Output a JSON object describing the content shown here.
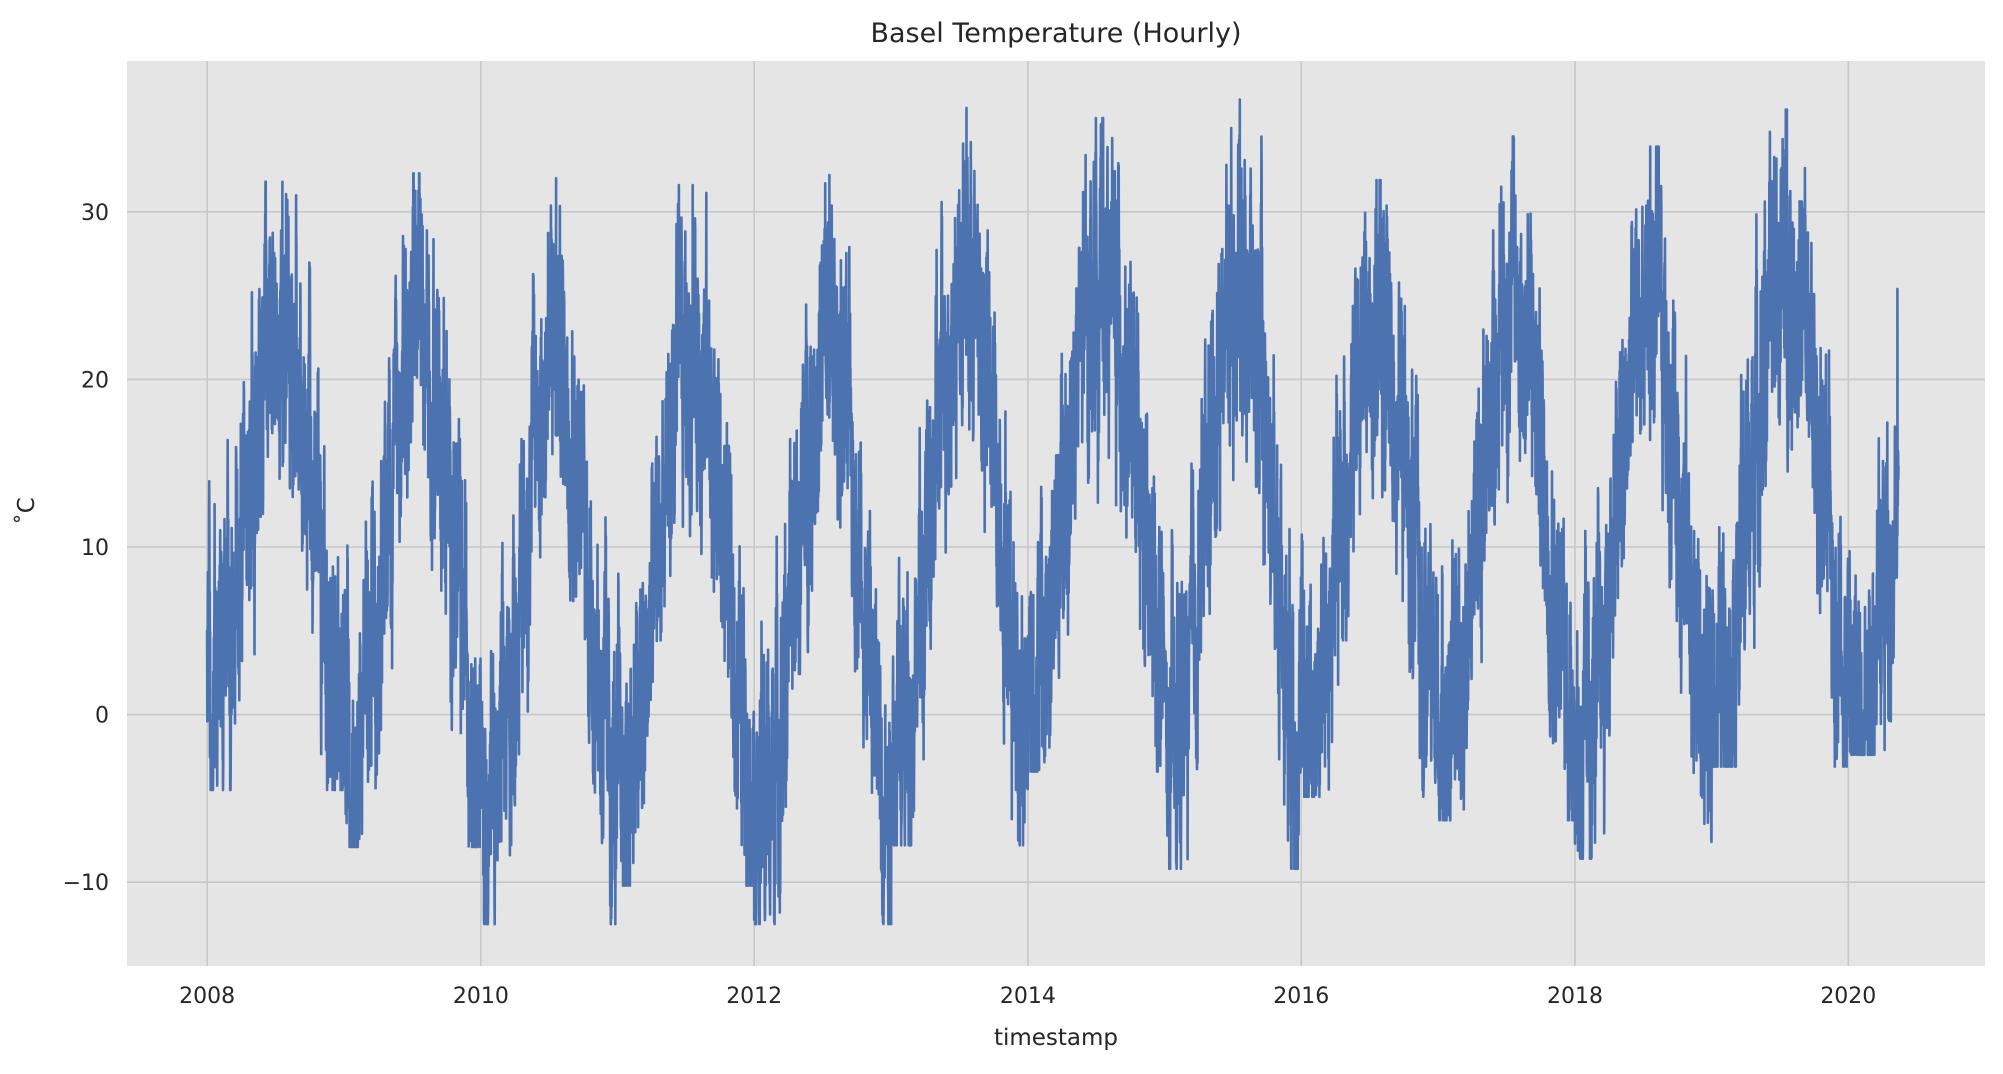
{
  "chart_data": {
    "type": "line",
    "title": "Basel Temperature (Hourly)",
    "xlabel": "timestamp",
    "ylabel": "˚C",
    "x_ticks": [
      "2008",
      "2010",
      "2012",
      "2014",
      "2016",
      "2018",
      "2020"
    ],
    "y_ticks": [
      -10,
      0,
      10,
      20,
      30
    ],
    "xlim": [
      "2007-06-01",
      "2020-12-31"
    ],
    "ylim": [
      -15,
      39
    ],
    "x_range": [
      "2008-01-01",
      "2020-05-14"
    ],
    "grid": true,
    "colors": {
      "line": "#4c72b0",
      "plot_background": "#e5e5e5",
      "grid": "#c8c8c8"
    },
    "series": [
      {
        "sampling": "hourly",
        "yearly_extremes": [
          {
            "year": "2008",
            "min": -4.5,
            "max": 31.8
          },
          {
            "year": "2009",
            "min": -7.9,
            "max": 32.3
          },
          {
            "year": "2010",
            "min": -12.5,
            "max": 32.0
          },
          {
            "year": "2011",
            "min": -10.2,
            "max": 31.6
          },
          {
            "year": "2012",
            "min": -12.5,
            "max": 32.2
          },
          {
            "year": "2013",
            "min": -7.8,
            "max": 36.2
          },
          {
            "year": "2014",
            "min": -3.4,
            "max": 35.6
          },
          {
            "year": "2015",
            "min": -9.2,
            "max": 36.7
          },
          {
            "year": "2016",
            "min": -4.9,
            "max": 31.9
          },
          {
            "year": "2017",
            "min": -6.3,
            "max": 34.5
          },
          {
            "year": "2018",
            "min": -8.6,
            "max": 33.9
          },
          {
            "year": "2019",
            "min": -3.1,
            "max": 36.1
          },
          {
            "year": "2020",
            "min": -2.4,
            "max": 25.4
          }
        ]
      }
    ]
  }
}
